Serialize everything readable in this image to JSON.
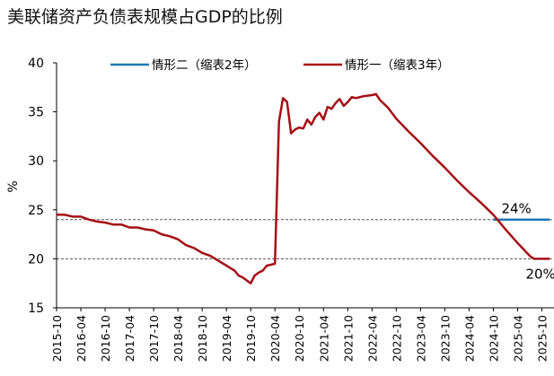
{
  "chart_data": {
    "type": "line",
    "title": "美联储资产负债表规模占GDP的比例",
    "ylabel": "%",
    "ylim": [
      15,
      40
    ],
    "yticks": [
      15,
      20,
      25,
      30,
      35,
      40
    ],
    "xticks": [
      "2015-10",
      "2016-04",
      "2016-10",
      "2017-04",
      "2017-10",
      "2018-04",
      "2018-10",
      "2019-04",
      "2019-10",
      "2020-04",
      "2020-10",
      "2021-04",
      "2021-10",
      "2022-04",
      "2022-10",
      "2023-04",
      "2023-10",
      "2024-04",
      "2024-10",
      "2025-04",
      "2025-10"
    ],
    "legend": "top-center",
    "reference_lines": [
      24,
      20
    ],
    "annotations": [
      {
        "text": "24%",
        "x": "2024-12",
        "y": 24
      },
      {
        "text": "20%",
        "x": "2025-06",
        "y": 20
      }
    ],
    "series": [
      {
        "name": "情形二（缩表2年）",
        "color": "#1f77b4",
        "points": [
          [
            "2024-10",
            24.0
          ],
          [
            "2025-12",
            24.0
          ]
        ]
      },
      {
        "name": "情形一（缩表3年）",
        "color": "#a50f15",
        "points": [
          [
            "2015-10",
            24.5
          ],
          [
            "2015-12",
            24.5
          ],
          [
            "2016-02",
            24.3
          ],
          [
            "2016-04",
            24.3
          ],
          [
            "2016-06",
            24.0
          ],
          [
            "2016-08",
            23.8
          ],
          [
            "2016-10",
            23.7
          ],
          [
            "2016-12",
            23.5
          ],
          [
            "2017-02",
            23.5
          ],
          [
            "2017-04",
            23.2
          ],
          [
            "2017-06",
            23.2
          ],
          [
            "2017-08",
            23.0
          ],
          [
            "2017-10",
            22.9
          ],
          [
            "2017-12",
            22.5
          ],
          [
            "2018-02",
            22.3
          ],
          [
            "2018-04",
            22.0
          ],
          [
            "2018-06",
            21.4
          ],
          [
            "2018-08",
            21.1
          ],
          [
            "2018-10",
            20.6
          ],
          [
            "2018-12",
            20.3
          ],
          [
            "2019-02",
            19.8
          ],
          [
            "2019-04",
            19.3
          ],
          [
            "2019-06",
            18.8
          ],
          [
            "2019-07",
            18.3
          ],
          [
            "2019-08",
            18.1
          ],
          [
            "2019-09",
            17.8
          ],
          [
            "2019-10",
            17.5
          ],
          [
            "2019-11",
            18.3
          ],
          [
            "2019-12",
            18.6
          ],
          [
            "2020-01",
            18.8
          ],
          [
            "2020-02",
            19.3
          ],
          [
            "2020-03",
            19.4
          ],
          [
            "2020-04",
            19.5
          ],
          [
            "2020-05",
            34.0
          ],
          [
            "2020-06",
            36.4
          ],
          [
            "2020-07",
            36.0
          ],
          [
            "2020-08",
            32.8
          ],
          [
            "2020-09",
            33.2
          ],
          [
            "2020-10",
            33.4
          ],
          [
            "2020-11",
            33.3
          ],
          [
            "2020-12",
            34.2
          ],
          [
            "2021-01",
            33.7
          ],
          [
            "2021-02",
            34.5
          ],
          [
            "2021-03",
            34.9
          ],
          [
            "2021-04",
            34.2
          ],
          [
            "2021-05",
            35.5
          ],
          [
            "2021-06",
            35.3
          ],
          [
            "2021-07",
            35.9
          ],
          [
            "2021-08",
            36.3
          ],
          [
            "2021-09",
            35.6
          ],
          [
            "2021-10",
            36.0
          ],
          [
            "2021-11",
            36.5
          ],
          [
            "2021-12",
            36.4
          ],
          [
            "2022-02",
            36.6
          ],
          [
            "2022-04",
            36.7
          ],
          [
            "2022-05",
            36.8
          ],
          [
            "2022-06",
            36.2
          ],
          [
            "2022-08",
            35.4
          ],
          [
            "2022-10",
            34.3
          ],
          [
            "2023-01",
            33.0
          ],
          [
            "2023-04",
            31.8
          ],
          [
            "2023-07",
            30.5
          ],
          [
            "2023-10",
            29.3
          ],
          [
            "2024-01",
            28.0
          ],
          [
            "2024-04",
            26.8
          ],
          [
            "2024-07",
            25.7
          ],
          [
            "2024-10",
            24.5
          ],
          [
            "2025-01",
            23.0
          ],
          [
            "2025-04",
            21.6
          ],
          [
            "2025-07",
            20.3
          ],
          [
            "2025-08",
            20.0
          ],
          [
            "2025-12",
            20.0
          ]
        ]
      }
    ]
  }
}
